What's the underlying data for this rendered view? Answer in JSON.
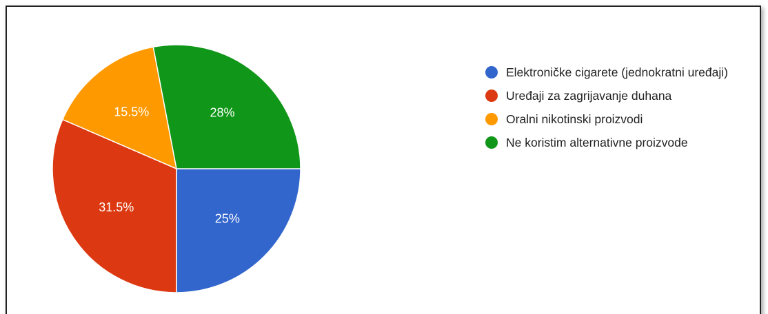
{
  "chart_data": {
    "type": "pie",
    "categories": [
      "Elektroničke cigarete (jednokratni uređaji)",
      "Uređaji za zagrijavanje duhana",
      "Oralni nikotinski proizvodi",
      "Ne koristim alternativne proizvode"
    ],
    "values": [
      25,
      31.5,
      15.5,
      28
    ],
    "value_labels": [
      "25%",
      "31.5%",
      "15.5%",
      "28%"
    ],
    "colors": [
      "#3366cc",
      "#dc3912",
      "#ff9900",
      "#109618"
    ],
    "legend": "right"
  }
}
